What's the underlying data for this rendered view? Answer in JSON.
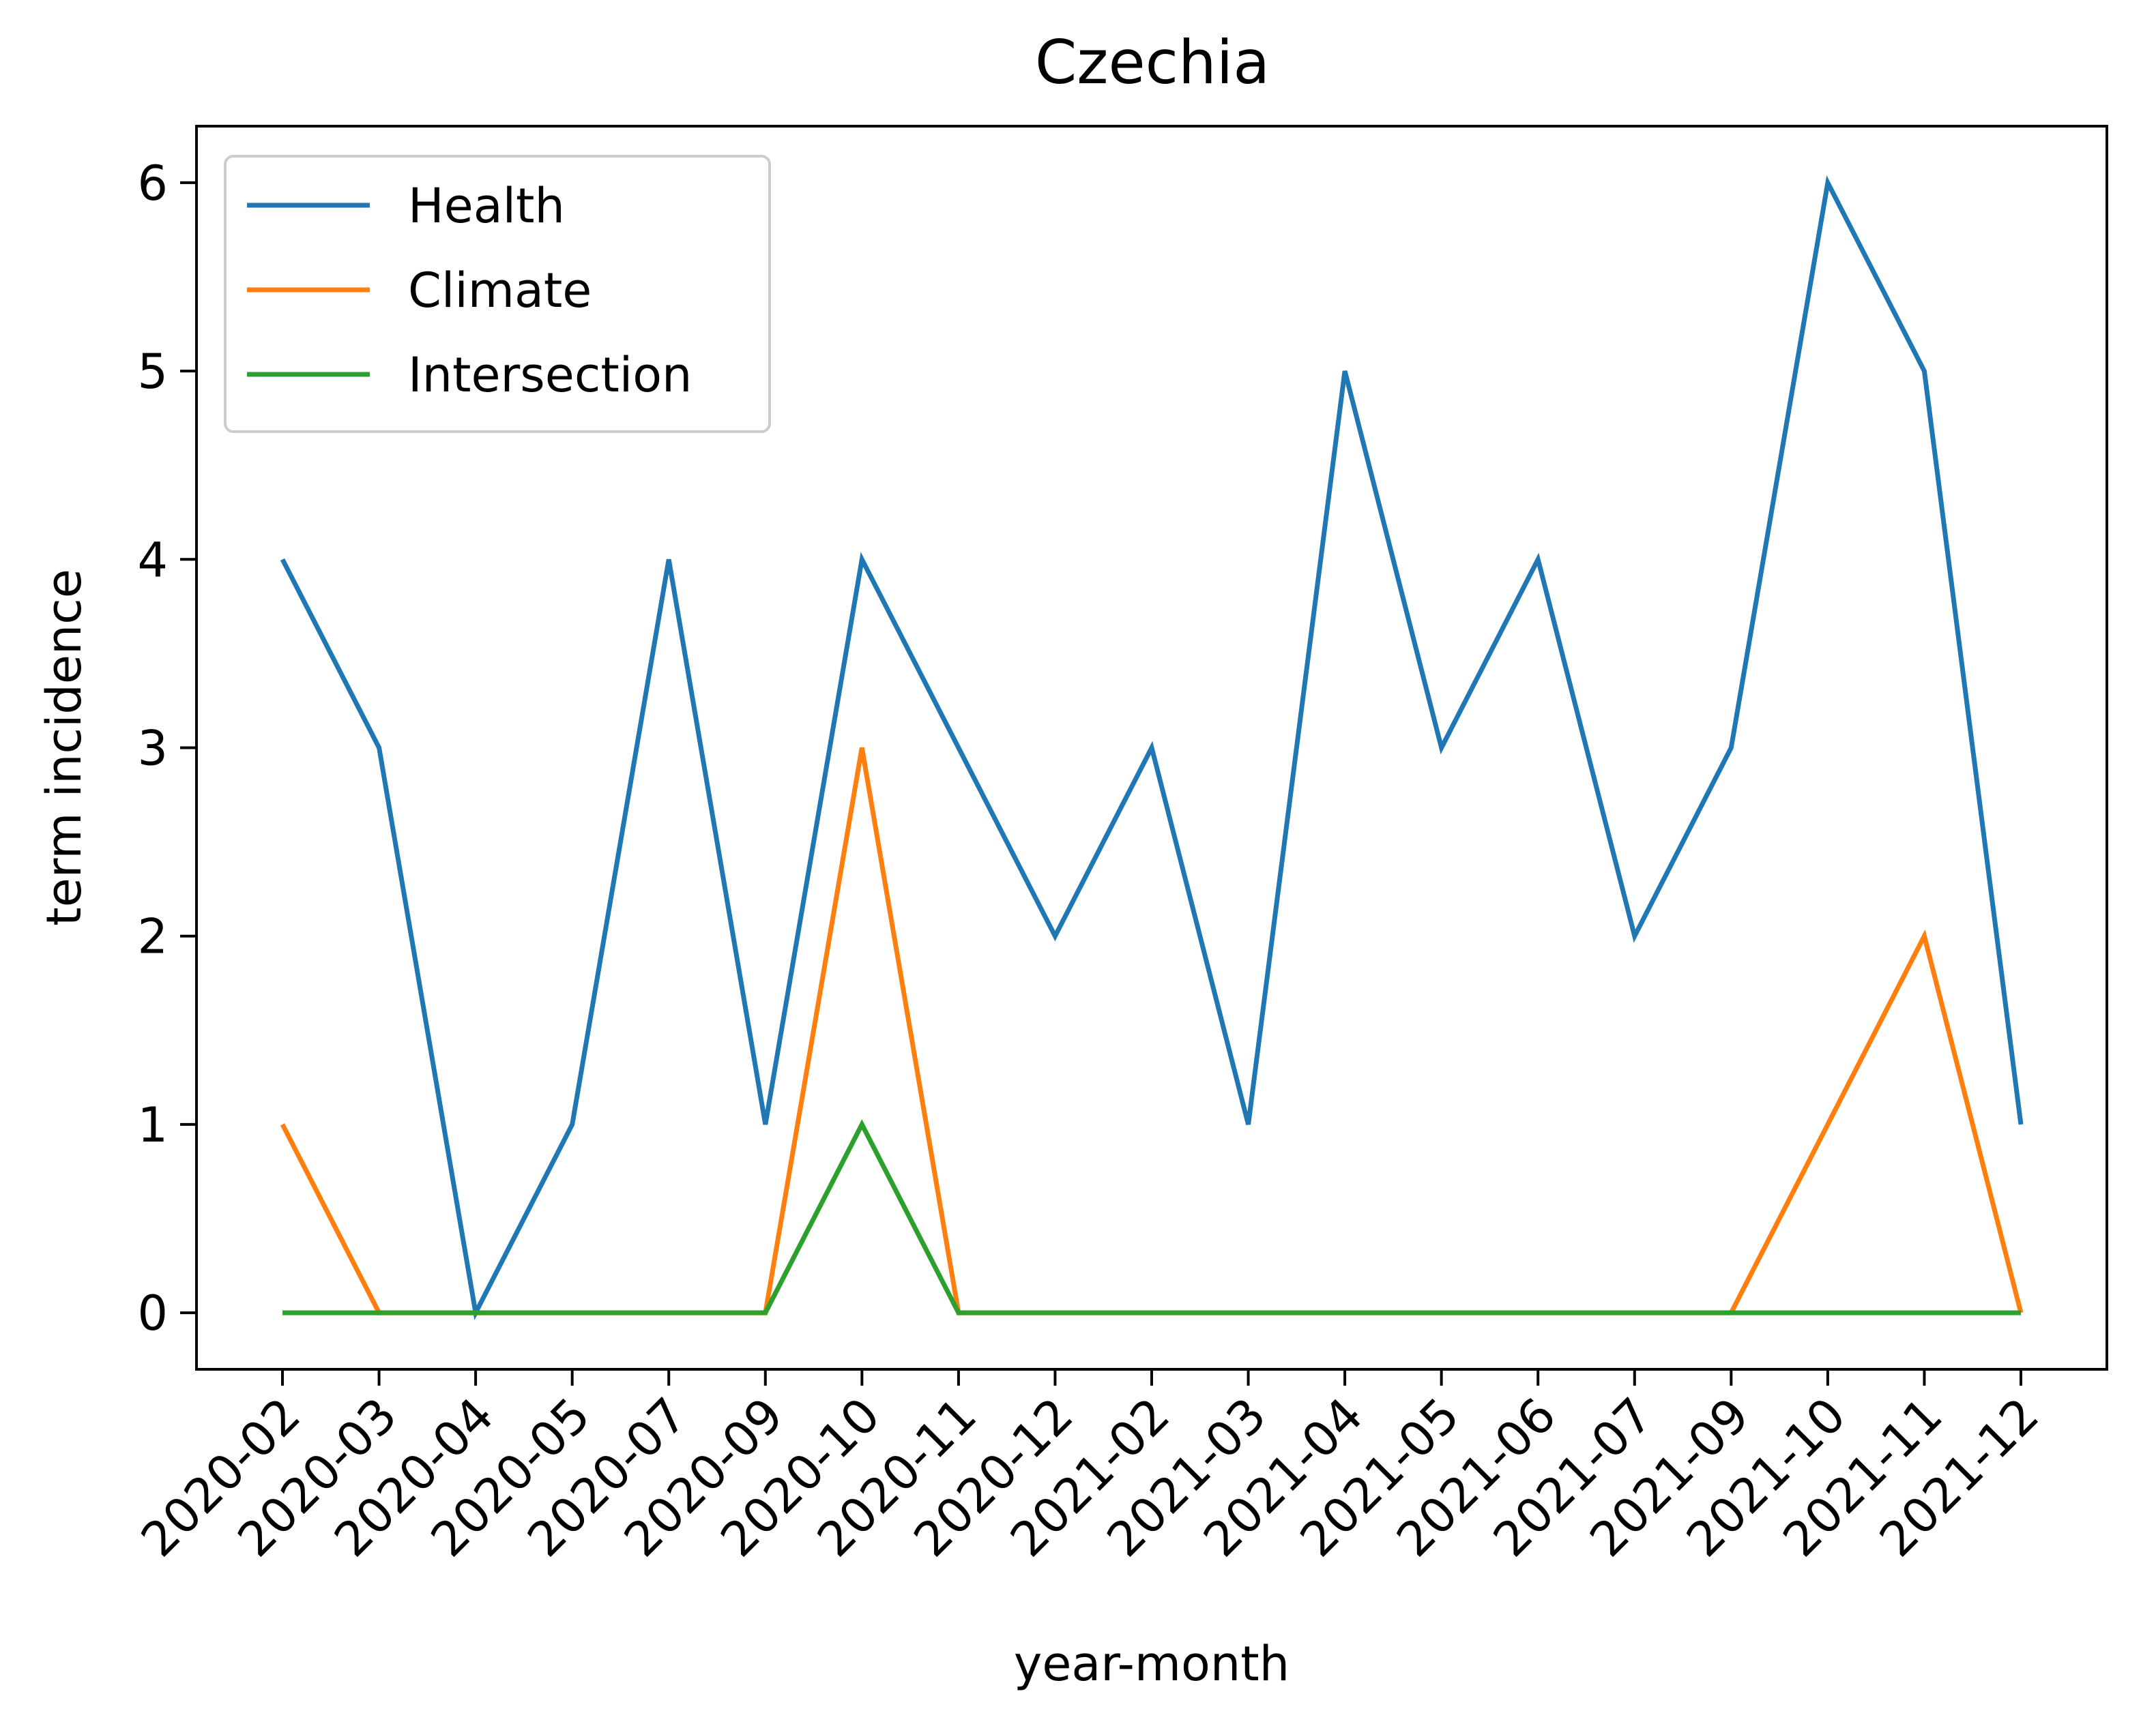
{
  "chart_data": {
    "type": "line",
    "title": "Czechia",
    "xlabel": "year-month",
    "ylabel": "term incidence",
    "categories": [
      "2020-02",
      "2020-03",
      "2020-04",
      "2020-05",
      "2020-07",
      "2020-09",
      "2020-10",
      "2020-11",
      "2020-12",
      "2021-02",
      "2021-03",
      "2021-04",
      "2021-05",
      "2021-06",
      "2021-07",
      "2021-09",
      "2021-10",
      "2021-11",
      "2021-12"
    ],
    "yticks": [
      0,
      1,
      2,
      3,
      4,
      5,
      6
    ],
    "ylim": [
      -0.3,
      6.3
    ],
    "grid": false,
    "legend_position": "top-left",
    "series": [
      {
        "name": "Health",
        "color": "#1f77b4",
        "values": [
          4,
          3,
          0,
          1,
          4,
          1,
          4,
          3,
          2,
          3,
          1,
          5,
          3,
          4,
          2,
          3,
          6,
          5,
          1
        ]
      },
      {
        "name": "Climate",
        "color": "#ff7f0e",
        "values": [
          1,
          0,
          0,
          0,
          0,
          0,
          3,
          0,
          0,
          0,
          0,
          0,
          0,
          0,
          0,
          0,
          1,
          2,
          0
        ]
      },
      {
        "name": "Intersection",
        "color": "#2ca02c",
        "values": [
          0,
          0,
          0,
          0,
          0,
          0,
          1,
          0,
          0,
          0,
          0,
          0,
          0,
          0,
          0,
          0,
          0,
          0,
          0
        ]
      }
    ]
  }
}
